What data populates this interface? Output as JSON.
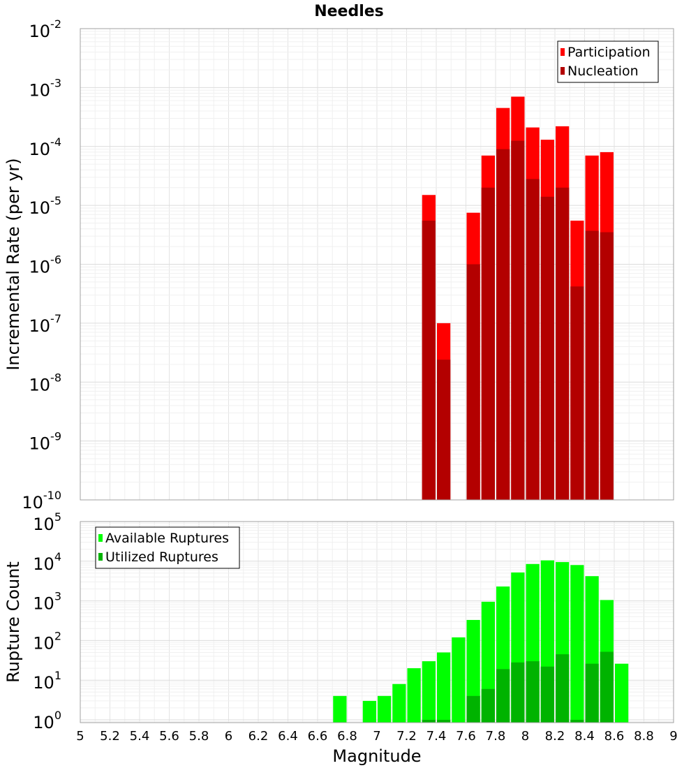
{
  "title": "Needles",
  "chart_data": [
    {
      "type": "bar",
      "panel": "rates",
      "ylabel": "Incremental Rate (per yr)",
      "yscale": "log",
      "ylim": [
        1e-10,
        0.01
      ],
      "xlim": [
        5,
        9
      ],
      "bin_width": 0.1,
      "grid": true,
      "legend_position": "top-right",
      "series": [
        {
          "name": "Participation",
          "color": "#ff0000",
          "x": [
            7.35,
            7.45,
            7.65,
            7.75,
            7.85,
            7.95,
            8.05,
            8.15,
            8.25,
            8.35,
            8.45,
            8.55
          ],
          "values": [
            1.5e-05,
            1e-07,
            7.5e-06,
            7e-05,
            0.00045,
            0.0007,
            0.00021,
            0.00013,
            0.00022,
            5.5e-06,
            7e-05,
            8e-05
          ]
        },
        {
          "name": "Nucleation",
          "color": "#b30000",
          "x": [
            7.35,
            7.45,
            7.65,
            7.75,
            7.85,
            7.95,
            8.05,
            8.15,
            8.25,
            8.35,
            8.45,
            8.55
          ],
          "values": [
            5.5e-06,
            2.4e-08,
            1e-06,
            2e-05,
            9e-05,
            0.000125,
            2.8e-05,
            1.4e-05,
            2e-05,
            4.2e-07,
            3.7e-06,
            3.5e-06
          ]
        }
      ]
    },
    {
      "type": "bar",
      "panel": "counts",
      "ylabel": "Rupture Count",
      "xlabel": "Magnitude",
      "yscale": "log",
      "ylim": [
        0.85,
        100000.0
      ],
      "xlim": [
        5,
        9
      ],
      "bin_width": 0.1,
      "grid": true,
      "legend_position": "top-left",
      "series": [
        {
          "name": "Available Ruptures",
          "color": "#00ff00",
          "x": [
            6.75,
            6.95,
            7.05,
            7.15,
            7.25,
            7.35,
            7.45,
            7.55,
            7.65,
            7.75,
            7.85,
            7.95,
            8.05,
            8.15,
            8.25,
            8.35,
            8.45,
            8.55,
            8.65
          ],
          "values": [
            4,
            3,
            4,
            8,
            20,
            30,
            50,
            120,
            330,
            950,
            2300,
            5200,
            8500,
            10500,
            9500,
            8000,
            4200,
            1050,
            26
          ]
        },
        {
          "name": "Utilized Ruptures",
          "color": "#00b300",
          "x": [
            7.35,
            7.45,
            7.65,
            7.75,
            7.85,
            7.95,
            8.05,
            8.15,
            8.25,
            8.35,
            8.45,
            8.55
          ],
          "values": [
            1,
            1,
            4,
            6,
            19,
            28,
            30,
            22,
            45,
            1,
            26,
            52
          ]
        }
      ]
    }
  ],
  "x_ticks": [
    "5",
    "5.2",
    "5.4",
    "5.6",
    "5.8",
    "6",
    "6.2",
    "6.4",
    "6.6",
    "6.8",
    "7",
    "7.2",
    "7.4",
    "7.6",
    "7.8",
    "8",
    "8.2",
    "8.4",
    "8.6",
    "8.8",
    "9"
  ],
  "top_y_exponents": [
    "-2",
    "-3",
    "-4",
    "-5",
    "-6",
    "-7",
    "-8",
    "-9",
    "-10"
  ],
  "bottom_y_exponents": [
    "5",
    "4",
    "3",
    "2",
    "1",
    "0"
  ]
}
